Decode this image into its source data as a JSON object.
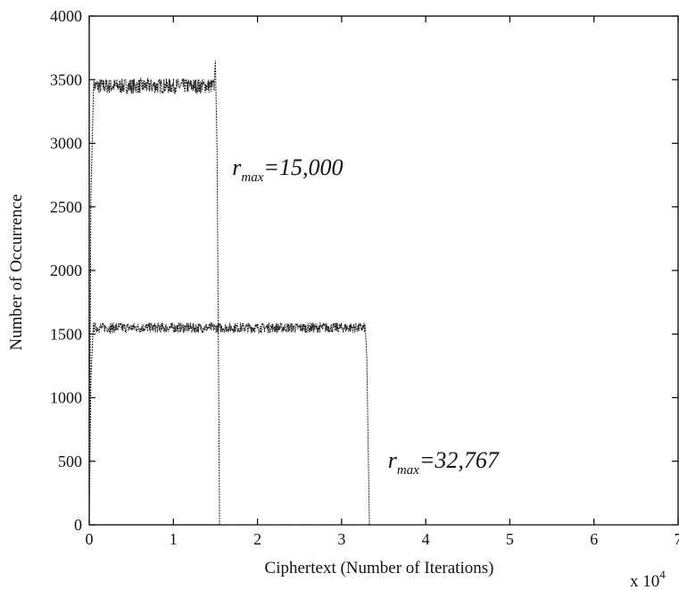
{
  "chart_data": {
    "type": "line",
    "title": "",
    "xlabel": "Ciphertext (Number of Iterations)",
    "ylabel": "Number of Occurrence",
    "x_multiplier_label": {
      "base": "x 10",
      "exp": "4"
    },
    "xlim": [
      0,
      7
    ],
    "ylim": [
      0,
      4000
    ],
    "xticks": [
      "0",
      "1",
      "2",
      "3",
      "4",
      "5",
      "6",
      "7"
    ],
    "yticks": [
      "0",
      "500",
      "1000",
      "1500",
      "2000",
      "2500",
      "3000",
      "3500",
      "4000"
    ],
    "grid": false,
    "series": [
      {
        "r_max": 15000,
        "level": 3450,
        "noise": 60,
        "x_end": 1.5,
        "spike": 3650,
        "x": [
          0,
          0.05,
          1.5,
          1.52,
          1.55
        ],
        "y": [
          0,
          3400,
          3450,
          3000,
          0
        ]
      },
      {
        "r_max": 32767,
        "level": 1550,
        "noise": 40,
        "x_end": 3.28,
        "x": [
          0,
          0.05,
          3.28,
          3.3,
          3.33
        ],
        "y": [
          0,
          1540,
          1550,
          1300,
          0
        ]
      }
    ],
    "annotations": [
      {
        "main": "r",
        "sub": "max",
        "text": "=15,000",
        "at_x": 1.7,
        "at_y": 2750
      },
      {
        "main": "r",
        "sub": "max",
        "text": "=32,767",
        "at_x": 3.55,
        "at_y": 450
      }
    ]
  }
}
